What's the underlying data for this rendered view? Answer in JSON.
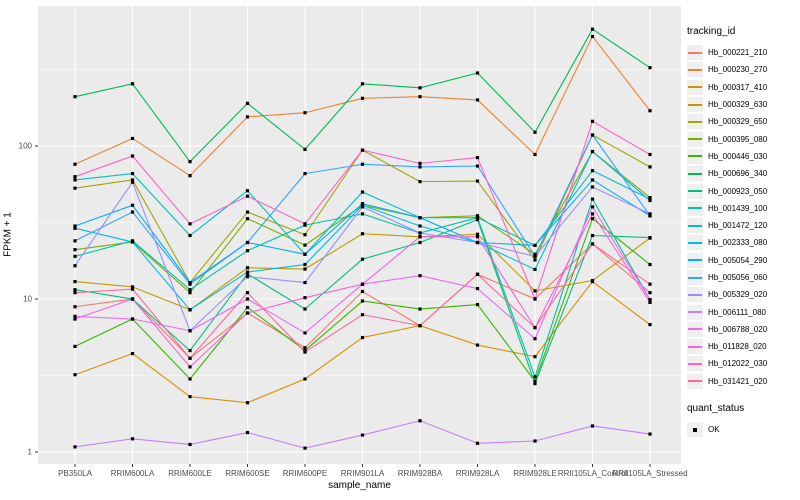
{
  "chart_data": {
    "type": "line",
    "title": "",
    "xlabel": "sample_name",
    "ylabel": "FPKM + 1",
    "y_scale": "log10",
    "ylim": [
      1,
      700
    ],
    "y_major_ticks": [
      1,
      10,
      100
    ],
    "y_minor_ticks": [
      3.162,
      31.62,
      316.2
    ],
    "grid": true,
    "legend_position": "right",
    "point_shape": "filled-black-square",
    "categories": [
      "PB350LA",
      "RRIM600LA",
      "RRIM600LE",
      "RRIM600SE",
      "RRIM600PE",
      "RRIM901LA",
      "RRIM928BA",
      "RRIM928LA",
      "RRIM928LE",
      "RRII105LA_Control",
      "RRII105LA_Stressed"
    ],
    "series": [
      {
        "name": "Hb_000221_210",
        "color": "#F8766D",
        "values": [
          8.9,
          10,
          4.1,
          8.1,
          4.8,
          11.2,
          6.7,
          14.5,
          10.0,
          22.9,
          11.0
        ]
      },
      {
        "name": "Hb_000230_270",
        "color": "#EA8331",
        "values": [
          76,
          112,
          64,
          155,
          165,
          205,
          210,
          200,
          88,
          520,
          170
        ]
      },
      {
        "name": "Hb_000317_410",
        "color": "#D89000",
        "values": [
          3.2,
          4.4,
          2.3,
          2.1,
          3.0,
          5.6,
          6.7,
          5.0,
          4.2,
          13.0,
          6.8
        ]
      },
      {
        "name": "Hb_000329_630",
        "color": "#C09B00",
        "values": [
          13,
          12,
          8.5,
          16,
          15.7,
          26.7,
          25.5,
          26.5,
          11.3,
          13.2,
          25
        ]
      },
      {
        "name": "Hb_000329_650",
        "color": "#A3A500",
        "values": [
          53,
          60,
          12.8,
          37,
          26.3,
          94,
          58.5,
          59,
          18,
          118,
          73
        ]
      },
      {
        "name": "Hb_000395_080",
        "color": "#7CAE00",
        "values": [
          21,
          23.6,
          11,
          33.5,
          22.5,
          41,
          34,
          35,
          19.6,
          92,
          46
        ]
      },
      {
        "name": "Hb_000446_030",
        "color": "#39B600",
        "values": [
          4.9,
          7.4,
          3.0,
          8.8,
          4.6,
          9.7,
          8.6,
          9.2,
          2.9,
          33.5,
          16.8
        ]
      },
      {
        "name": "Hb_000696_340",
        "color": "#00BB4E",
        "values": [
          210,
          255,
          79,
          190,
          95,
          255,
          240,
          300,
          123,
          580,
          325
        ]
      },
      {
        "name": "Hb_000923_050",
        "color": "#00BF7D",
        "values": [
          11.5,
          10,
          4.6,
          14.6,
          8.6,
          18.2,
          23.4,
          33,
          2.8,
          26,
          25.2
        ]
      },
      {
        "name": "Hb_001439_100",
        "color": "#00C1A3",
        "values": [
          19,
          24,
          11.5,
          20.7,
          30.4,
          36,
          27,
          34,
          3.1,
          45,
          9.9
        ]
      },
      {
        "name": "Hb_001472_120",
        "color": "#00BFC4",
        "values": [
          60,
          66,
          26,
          51,
          19.6,
          50,
          34,
          34,
          22.4,
          69,
          45
        ]
      },
      {
        "name": "Hb_002333_080",
        "color": "#00BAE0",
        "values": [
          29,
          23.6,
          8.5,
          15,
          16.8,
          41,
          30,
          23.4,
          15.6,
          92,
          44
        ]
      },
      {
        "name": "Hb_005054_290",
        "color": "#00B0F6",
        "values": [
          30,
          41,
          12.8,
          23.4,
          19.6,
          42,
          34,
          23.4,
          22.4,
          60,
          35
        ]
      },
      {
        "name": "Hb_005056_060",
        "color": "#35A2FF",
        "values": [
          24,
          37,
          12.5,
          23.4,
          66,
          76,
          73,
          74,
          19,
          118,
          35
        ]
      },
      {
        "name": "Hb_005329_020",
        "color": "#9590FF",
        "values": [
          16.5,
          58,
          6.2,
          14,
          12.8,
          40,
          27,
          23.4,
          19,
          54,
          36
        ]
      },
      {
        "name": "Hb_006111_080",
        "color": "#C77CFF",
        "values": [
          1.08,
          1.22,
          1.12,
          1.34,
          1.06,
          1.29,
          1.6,
          1.14,
          1.18,
          1.48,
          1.31
        ]
      },
      {
        "name": "Hb_006788_020",
        "color": "#E76BF3",
        "values": [
          7.7,
          7.4,
          6.2,
          10,
          6.0,
          12.5,
          14.2,
          11.7,
          5.5,
          40,
          9.9
        ]
      },
      {
        "name": "Hb_011828_020",
        "color": "#FA62DB",
        "values": [
          7.4,
          10,
          3.6,
          8.1,
          10.2,
          12.5,
          25.5,
          25.5,
          6.5,
          36,
          9.5
        ]
      },
      {
        "name": "Hb_012022_030",
        "color": "#FF61C9",
        "values": [
          63,
          86,
          31,
          47,
          31,
          94,
          77,
          84,
          10,
          145,
          88
        ]
      },
      {
        "name": "Hb_031421_020",
        "color": "#FF689E",
        "values": [
          11,
          11.6,
          4.1,
          11,
          4.5,
          7.9,
          6.7,
          14.5,
          6.5,
          22.9,
          12.5
        ]
      }
    ]
  },
  "legend": {
    "tracking_title": "tracking_id",
    "quant_title": "quant_status",
    "quant_items": [
      {
        "label": "OK",
        "shape": "black-square"
      }
    ]
  },
  "panel": {
    "background": "#EBEBEB",
    "grid_color": "#FFFFFF",
    "tick_text_color": "#4D4D4D"
  }
}
